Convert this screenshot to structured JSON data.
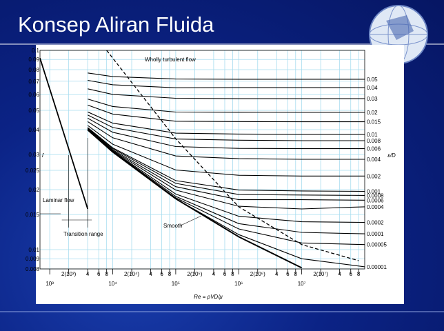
{
  "slide_title": "Konsep Aliran Fluida",
  "chart_data": {
    "type": "line",
    "xscale": "log",
    "yscale": "log",
    "xlim": [
      700,
      100000000
    ],
    "ylim": [
      0.008,
      0.1
    ],
    "yticks": [
      0.1,
      0.09,
      0.08,
      0.07,
      0.06,
      0.05,
      0.04,
      0.03,
      0.025,
      0.02,
      0.015,
      0.01,
      0.009,
      0.008
    ],
    "xticks": [
      {
        "value": 1000,
        "label": "10³"
      },
      {
        "value": 10000,
        "label": "10⁴"
      },
      {
        "value": 100000,
        "label": "10⁵"
      },
      {
        "value": 1000000,
        "label": "10⁶"
      },
      {
        "value": 10000000,
        "label": "10⁷"
      }
    ],
    "xticks_minor": [
      {
        "value": 2000,
        "label": "2(10³)"
      },
      {
        "value": 4000,
        "label": "4"
      },
      {
        "value": 6000,
        "label": "6"
      },
      {
        "value": 8000,
        "label": "8"
      },
      {
        "value": 20000,
        "label": "2(10⁴)"
      },
      {
        "value": 40000,
        "label": "4"
      },
      {
        "value": 60000,
        "label": "6"
      },
      {
        "value": 80000,
        "label": "8"
      },
      {
        "value": 200000,
        "label": "2(10⁵)"
      },
      {
        "value": 400000,
        "label": "4"
      },
      {
        "value": 600000,
        "label": "6"
      },
      {
        "value": 800000,
        "label": "8"
      },
      {
        "value": 2000000,
        "label": "2(10⁶)"
      },
      {
        "value": 4000000,
        "label": "4"
      },
      {
        "value": 6000000,
        "label": "6"
      },
      {
        "value": 8000000,
        "label": "8"
      },
      {
        "value": 20000000,
        "label": "2(10⁷)"
      },
      {
        "value": 40000000,
        "label": "4"
      },
      {
        "value": 60000000,
        "label": "6"
      },
      {
        "value": 80000000,
        "label": "8"
      }
    ],
    "grid": true,
    "grid_color": "#a6dcef",
    "line_color": "#000000",
    "x_label": "Re = ρVD/μ",
    "y_label": "f",
    "y2_label": "ε/D",
    "x": [
      4000,
      10000,
      100000,
      1000000,
      10000000,
      100000000
    ],
    "series": [
      {
        "name": "0.05",
        "values": [
          0.077,
          0.0738,
          0.0718,
          0.0716,
          0.0716,
          0.0716
        ]
      },
      {
        "name": "0.04",
        "values": [
          0.0707,
          0.0672,
          0.0649,
          0.065,
          0.065,
          0.065
        ]
      },
      {
        "name": "0.03",
        "values": [
          0.0641,
          0.0601,
          0.0575,
          0.0572,
          0.0572,
          0.0572
        ]
      },
      {
        "name": "0.02",
        "values": [
          0.057,
          0.0523,
          0.049,
          0.0489,
          0.0488,
          0.0488
        ]
      },
      {
        "name": "0.015",
        "values": [
          0.0531,
          0.0479,
          0.0441,
          0.0439,
          0.0438,
          0.0438
        ]
      },
      {
        "name": "0.01",
        "values": [
          0.0491,
          0.0431,
          0.0384,
          0.038,
          0.0379,
          0.0379
        ]
      },
      {
        "name": "0.008",
        "values": [
          0.0474,
          0.041,
          0.0359,
          0.0354,
          0.0352,
          0.0352
        ]
      },
      {
        "name": "0.006",
        "values": [
          0.0457,
          0.0388,
          0.0329,
          0.0322,
          0.0321,
          0.0321
        ]
      },
      {
        "name": "0.004",
        "values": [
          0.0439,
          0.0364,
          0.0295,
          0.0286,
          0.0284,
          0.0284
        ]
      },
      {
        "name": "0.002",
        "values": [
          0.042,
          0.0338,
          0.0251,
          0.0236,
          0.0234,
          0.0234
        ]
      },
      {
        "name": "0.001",
        "values": [
          0.041,
          0.0324,
          0.0222,
          0.0199,
          0.0197,
          0.0196
        ]
      },
      {
        "name": "0.0008",
        "values": [
          0.0408,
          0.0321,
          0.0215,
          0.0189,
          0.0188,
          0.0187
        ]
      },
      {
        "name": "0.0006",
        "values": [
          0.0406,
          0.0317,
          0.0207,
          0.0178,
          0.0178,
          0.0177
        ]
      },
      {
        "name": "0.0004",
        "values": [
          0.0404,
          0.0314,
          0.0199,
          0.0165,
          0.016,
          0.0164
        ]
      },
      {
        "name": "0.0002",
        "values": [
          0.0401,
          0.0312,
          0.019,
          0.0147,
          0.0138,
          0.0137
        ]
      },
      {
        "name": "0.0001",
        "values": [
          0.04,
          0.0311,
          0.0185,
          0.0135,
          0.0122,
          0.012
        ]
      },
      {
        "name": "0.00005",
        "values": [
          0.04,
          0.031,
          0.0182,
          0.0127,
          0.0108,
          0.0106
        ]
      },
      {
        "name": "0.00001",
        "values": [
          0.0399,
          0.0309,
          0.018,
          0.0119,
          0.009,
          0.0082
        ]
      }
    ],
    "smooth": {
      "name": "Smooth",
      "values": [
        0.0399,
        0.0309,
        0.018,
        0.0116,
        0.0081,
        null
      ]
    },
    "laminar": {
      "name": "Laminar flow",
      "x": [
        700,
        2000,
        4000
      ],
      "values": [
        0.0914,
        0.032,
        0.016
      ]
    },
    "transition": {
      "name": "Transition range"
    },
    "turbulent_boundary": {
      "name": "Wholly turbulent flow",
      "x": [
        8000,
        100000,
        1000000,
        10000000,
        80000000
      ],
      "values": [
        0.1,
        0.036,
        0.0164,
        0.0106,
        0.0088
      ]
    }
  }
}
